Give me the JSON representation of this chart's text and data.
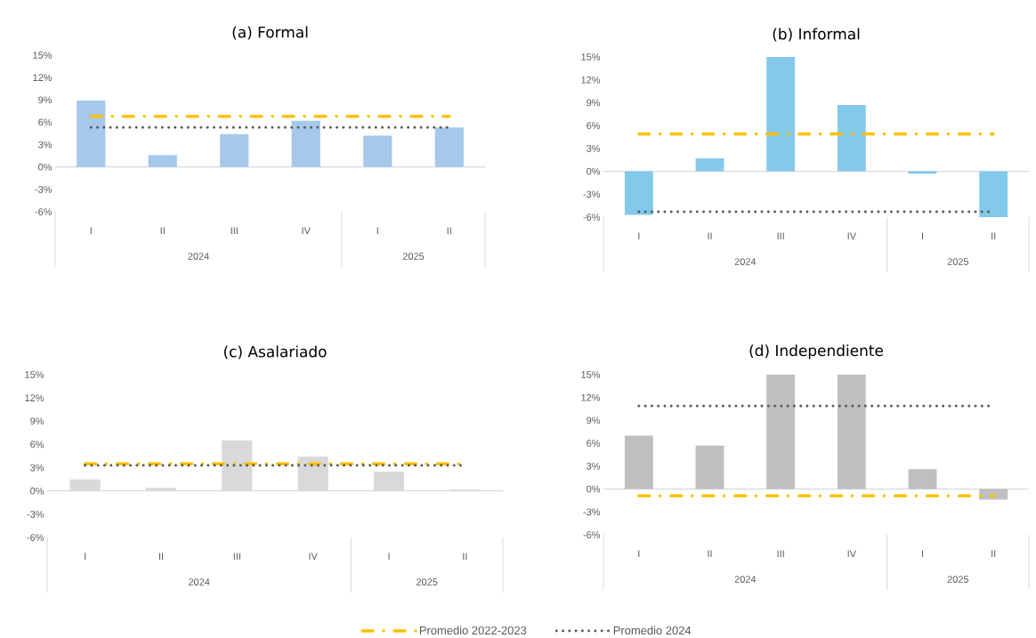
{
  "chart_data": [
    {
      "type": "bar",
      "title": "(a)  Formal",
      "categories": [
        "I",
        "II",
        "III",
        "IV",
        "I",
        "II"
      ],
      "annotations": [
        "2024",
        "2025"
      ],
      "ylim": [
        -6,
        15
      ],
      "yticks": [
        {
          "value": -6,
          "label": "-6%"
        },
        {
          "value": -3,
          "label": "-3%"
        },
        {
          "value": 0,
          "label": "0%"
        },
        {
          "value": 3,
          "label": "3%"
        },
        {
          "value": 6,
          "label": "6%"
        },
        {
          "value": 9,
          "label": "9%"
        },
        {
          "value": 12,
          "label": "12%"
        },
        {
          "value": 15,
          "label": "15%"
        }
      ],
      "series": [
        {
          "color": "#a6c8ea",
          "values": [
            8.9,
            1.6,
            4.4,
            6.2,
            4.2,
            5.3
          ]
        },
        {
          "type": "line",
          "color": "#ffc000",
          "line_style": "dashed",
          "values": [
            6.8,
            6.8,
            6.8,
            6.8,
            6.8,
            6.8
          ]
        },
        {
          "type": "line",
          "color": "#595959",
          "line_style": "dotted",
          "values": [
            5.3,
            5.3,
            5.3,
            5.3,
            5.3,
            5.3
          ]
        }
      ]
    },
    {
      "type": "bar",
      "title": "(b)  Informal",
      "categories": [
        "I",
        "II",
        "III",
        "IV",
        "I",
        "II"
      ],
      "annotations": [
        "2024",
        "2025"
      ],
      "ylim": [
        -6,
        15
      ],
      "yticks": [
        {
          "value": -6,
          "label": "-6%"
        },
        {
          "value": -3,
          "label": "-3%"
        },
        {
          "value": 0,
          "label": "0%"
        },
        {
          "value": 3,
          "label": "3%"
        },
        {
          "value": 6,
          "label": "6%"
        },
        {
          "value": 9,
          "label": "9%"
        },
        {
          "value": 12,
          "label": "12%"
        },
        {
          "value": 15,
          "label": "15%"
        }
      ],
      "series": [
        {
          "color": "#83c9ea",
          "values": [
            -5.7,
            1.7,
            15.0,
            8.7,
            -0.3,
            -6.0
          ]
        },
        {
          "type": "line",
          "color": "#ffc000",
          "line_style": "dashed",
          "values": [
            4.9,
            4.9,
            4.9,
            4.9,
            4.9,
            4.9
          ]
        },
        {
          "type": "line",
          "color": "#595959",
          "line_style": "dotted",
          "values": [
            -5.3,
            -5.3,
            -5.3,
            -5.3,
            -5.3,
            -5.3
          ]
        }
      ]
    },
    {
      "type": "bar",
      "title": "(c)  Asalariado",
      "categories": [
        "I",
        "II",
        "III",
        "IV",
        "I",
        "II"
      ],
      "annotations": [
        "2024",
        "2025"
      ],
      "ylim": [
        -6,
        15
      ],
      "yticks": [
        {
          "value": -6,
          "label": "-6%"
        },
        {
          "value": -3,
          "label": "-3%"
        },
        {
          "value": 0,
          "label": "0%"
        },
        {
          "value": 3,
          "label": "3%"
        },
        {
          "value": 6,
          "label": "6%"
        },
        {
          "value": 9,
          "label": "9%"
        },
        {
          "value": 12,
          "label": "12%"
        },
        {
          "value": 15,
          "label": "15%"
        }
      ],
      "series": [
        {
          "color": "#d9d9d9",
          "values": [
            1.5,
            0.4,
            6.5,
            4.4,
            2.5,
            0.2
          ]
        },
        {
          "type": "line",
          "color": "#ffc000",
          "line_style": "dashed",
          "values": [
            3.5,
            3.5,
            3.5,
            3.5,
            3.5,
            3.5
          ]
        },
        {
          "type": "line",
          "color": "#595959",
          "line_style": "dotted",
          "values": [
            3.3,
            3.3,
            3.3,
            3.3,
            3.3,
            3.3
          ]
        }
      ]
    },
    {
      "type": "bar",
      "title": "(d)  Independiente",
      "categories": [
        "I",
        "II",
        "III",
        "IV",
        "I",
        "II"
      ],
      "annotations": [
        "2024",
        "2025"
      ],
      "ylim": [
        -6,
        15
      ],
      "legend": "bottom",
      "yticks": [
        {
          "value": -6,
          "label": "-6%"
        },
        {
          "value": -3,
          "label": "-3%"
        },
        {
          "value": 0,
          "label": "0%"
        },
        {
          "value": 3,
          "label": "3%"
        },
        {
          "value": 6,
          "label": "6%"
        },
        {
          "value": 9,
          "label": "9%"
        },
        {
          "value": 12,
          "label": "12%"
        },
        {
          "value": 15,
          "label": "15%"
        }
      ],
      "series": [
        {
          "color": "#bfbfbf",
          "values": [
            7.0,
            5.7,
            15.0,
            15.0,
            2.6,
            -1.4
          ]
        },
        {
          "type": "line",
          "name": "Promedio 2022-2023",
          "color": "#ffc000",
          "line_style": "dashed",
          "values": [
            -0.9,
            -0.9,
            -0.9,
            -0.9,
            -0.9,
            -0.9
          ]
        },
        {
          "type": "line",
          "name": "Promedio 2024",
          "color": "#595959",
          "line_style": "dotted",
          "values": [
            10.9,
            10.9,
            10.9,
            10.9,
            10.9,
            10.9
          ]
        }
      ]
    }
  ]
}
